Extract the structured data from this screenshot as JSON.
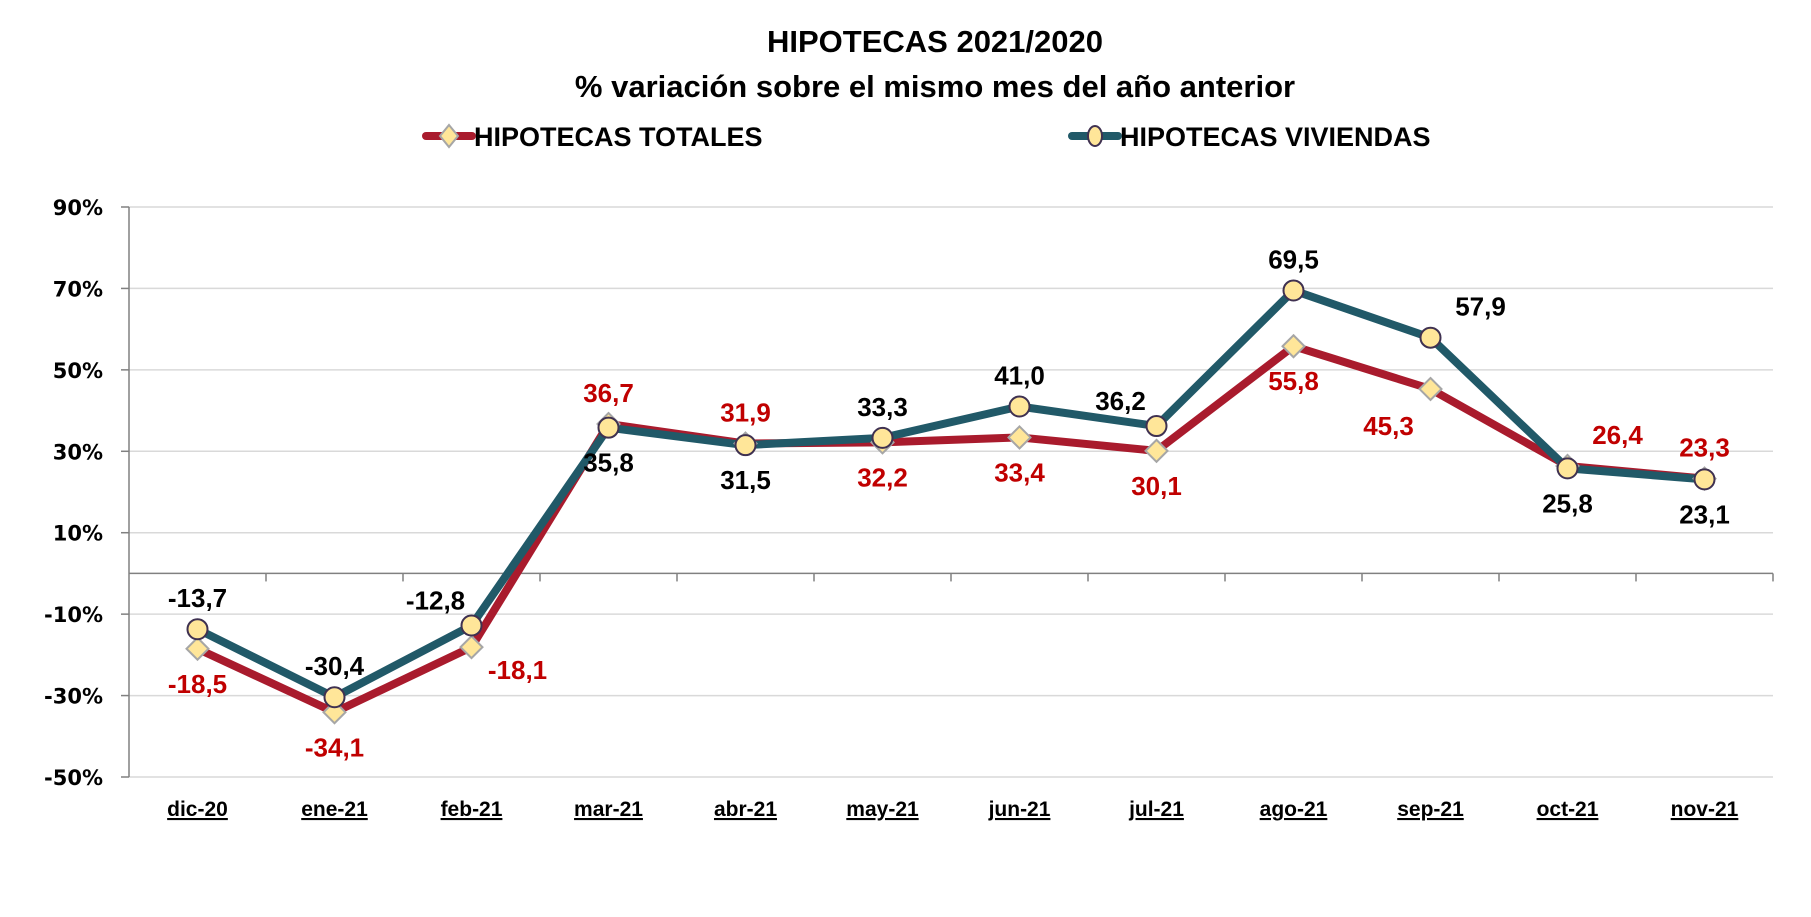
{
  "chart_data": {
    "type": "line",
    "title": "HIPOTECAS 2021/2020",
    "subtitle": "% variación sobre el mismo mes del año anterior",
    "xlabel": "",
    "ylabel": "",
    "categories": [
      "dic-20",
      "ene-21",
      "feb-21",
      "mar-21",
      "abr-21",
      "may-21",
      "jun-21",
      "jul-21",
      "ago-21",
      "sep-21",
      "oct-21",
      "nov-21"
    ],
    "ylim": [
      -50,
      90
    ],
    "yticks": [
      -50,
      -30,
      -10,
      10,
      30,
      50,
      70,
      90
    ],
    "ytick_labels": [
      "-50%",
      "-30%",
      "-10%",
      "10%",
      "30%",
      "50%",
      "70%",
      "90%"
    ],
    "grid": true,
    "legend_position": "top",
    "series": [
      {
        "name": "HIPOTECAS TOTALES",
        "color": "#A91B2D",
        "label_color": "#C00000",
        "marker": "diamond",
        "marker_fill": "#FFE699",
        "marker_stroke": "#A6A6A6",
        "values": [
          -18.5,
          -34.1,
          -18.1,
          36.7,
          31.9,
          32.2,
          33.4,
          30.1,
          55.8,
          45.3,
          26.4,
          23.3
        ],
        "labels": [
          "-18,5",
          "-34,1",
          "-18,1",
          "36,7",
          "31,9",
          "32,2",
          "33,4",
          "30,1",
          "55,8",
          "45,3",
          "26,4",
          "23,3"
        ],
        "label_placement": [
          "below",
          "below",
          "below-right",
          "above",
          "above",
          "below",
          "below",
          "below",
          "below",
          "below-left",
          "above-right",
          "above"
        ]
      },
      {
        "name": "HIPOTECAS VIVIENDAS",
        "color": "#215968",
        "label_color": "#000000",
        "marker": "circle",
        "marker_fill": "#FFE699",
        "marker_stroke": "#3F3151",
        "values": [
          -13.7,
          -30.4,
          -12.8,
          35.8,
          31.5,
          33.3,
          41.0,
          36.2,
          69.5,
          57.9,
          25.8,
          23.1
        ],
        "labels": [
          "-13,7",
          "-30,4",
          "-12,8",
          "35,8",
          "31,5",
          "33,3",
          "41,0",
          "36,2",
          "69,5",
          "57,9",
          "25,8",
          "23,1"
        ],
        "label_placement": [
          "above",
          "above",
          "above-left",
          "below",
          "below",
          "above",
          "above",
          "above-left",
          "above",
          "above-right",
          "below",
          "below"
        ]
      }
    ]
  }
}
